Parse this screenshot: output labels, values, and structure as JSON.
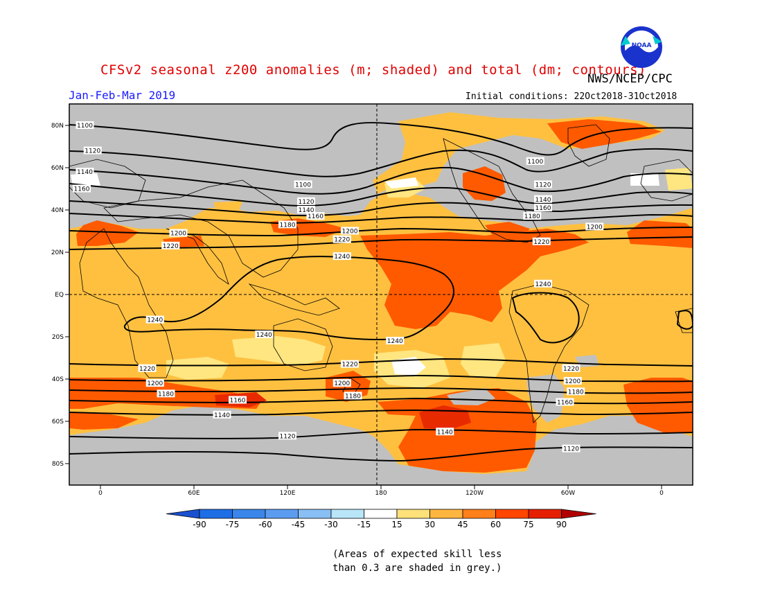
{
  "title": "CFSv2 seasonal z200 anomalies (m; shaded) and total (dm; contours)",
  "organization": "NWS/NCEP/CPC",
  "season": "Jan-Feb-Mar 2019",
  "initial_conditions": "Initial conditions: 22Oct2018-31Oct2018",
  "note_line1": "(Areas of expected skill less",
  "note_line2": "than 0.3 are shaded in grey.)",
  "logo_text": "NOAA",
  "lat_ticks": [
    {
      "label": "80N",
      "lat": 80
    },
    {
      "label": "60N",
      "lat": 60
    },
    {
      "label": "40N",
      "lat": 40
    },
    {
      "label": "20N",
      "lat": 20
    },
    {
      "label": "EQ",
      "lat": 0
    },
    {
      "label": "20S",
      "lat": -20
    },
    {
      "label": "40S",
      "lat": -40
    },
    {
      "label": "60S",
      "lat": -60
    },
    {
      "label": "80S",
      "lat": -80
    }
  ],
  "lon_ticks": [
    {
      "label": "0",
      "lon": 0
    },
    {
      "label": "60E",
      "lon": 60
    },
    {
      "label": "120E",
      "lon": 120
    },
    {
      "label": "180",
      "lon": 180
    },
    {
      "label": "120W",
      "lon": 240
    },
    {
      "label": "60W",
      "lon": 300
    },
    {
      "label": "0",
      "lon": 360
    }
  ],
  "colorbar": {
    "labels": [
      "-90",
      "-75",
      "-60",
      "-45",
      "-30",
      "-15",
      "15",
      "30",
      "45",
      "60",
      "75",
      "90"
    ],
    "colors": [
      "#1e6ee6",
      "#3a86ea",
      "#5c9cf0",
      "#88bff5",
      "#b8e6f8",
      "#ffffff",
      "#ffe17a",
      "#ffb640",
      "#ff7f1a",
      "#ff4500",
      "#e61e00"
    ],
    "end_low": "#1a50d0",
    "end_high": "#b00000"
  },
  "colors": {
    "grey": "#c0c0c0",
    "c15": "#ffe680",
    "c30": "#ffc040",
    "c45": "#ff8c1a",
    "c60": "#ff5a00",
    "c75": "#e82a00"
  },
  "contour_labels": [
    {
      "label": "1100",
      "lon": -10,
      "lat": 80
    },
    {
      "label": "1120",
      "lon": -5,
      "lat": 68
    },
    {
      "label": "1140",
      "lon": -10,
      "lat": 58
    },
    {
      "label": "1160",
      "lon": -12,
      "lat": 50
    },
    {
      "label": "1100",
      "lon": 130,
      "lat": 52
    },
    {
      "label": "1120",
      "lon": 132,
      "lat": 44
    },
    {
      "label": "1140",
      "lon": 132,
      "lat": 40
    },
    {
      "label": "1160",
      "lon": 138,
      "lat": 37
    },
    {
      "label": "1180",
      "lon": 120,
      "lat": 33
    },
    {
      "label": "1200",
      "lon": 160,
      "lat": 30
    },
    {
      "label": "1220",
      "lon": 155,
      "lat": 26
    },
    {
      "label": "1200",
      "lon": 50,
      "lat": 29
    },
    {
      "label": "1220",
      "lon": 45,
      "lat": 23
    },
    {
      "label": "1240",
      "lon": 155,
      "lat": 18
    },
    {
      "label": "1100",
      "lon": 279,
      "lat": 63
    },
    {
      "label": "1120",
      "lon": 284,
      "lat": 52
    },
    {
      "label": "1140",
      "lon": 284,
      "lat": 45
    },
    {
      "label": "1160",
      "lon": 284,
      "lat": 41
    },
    {
      "label": "1180",
      "lon": 277,
      "lat": 37
    },
    {
      "label": "1200",
      "lon": 317,
      "lat": 32
    },
    {
      "label": "1220",
      "lon": 283,
      "lat": 25
    },
    {
      "label": "1240",
      "lon": 284,
      "lat": 5
    },
    {
      "label": "1240",
      "lon": 35,
      "lat": -12
    },
    {
      "label": "1240",
      "lon": 105,
      "lat": -19
    },
    {
      "label": "1240",
      "lon": 189,
      "lat": -22
    },
    {
      "label": "1220",
      "lon": 30,
      "lat": -35
    },
    {
      "label": "1200",
      "lon": 35,
      "lat": -42
    },
    {
      "label": "1180",
      "lon": 42,
      "lat": -47
    },
    {
      "label": "1160",
      "lon": 88,
      "lat": -50
    },
    {
      "label": "1140",
      "lon": 78,
      "lat": -57
    },
    {
      "label": "1120",
      "lon": 120,
      "lat": -67
    },
    {
      "label": "1220",
      "lon": 160,
      "lat": -33
    },
    {
      "label": "1200",
      "lon": 155,
      "lat": -42
    },
    {
      "label": "1180",
      "lon": 162,
      "lat": -48
    },
    {
      "label": "1140",
      "lon": 221,
      "lat": -65
    },
    {
      "label": "1220",
      "lon": 302,
      "lat": -35
    },
    {
      "label": "1200",
      "lon": 303,
      "lat": -41
    },
    {
      "label": "1180",
      "lon": 305,
      "lat": -46
    },
    {
      "label": "1160",
      "lon": 298,
      "lat": -51
    },
    {
      "label": "1120",
      "lon": 302,
      "lat": -73
    }
  ]
}
